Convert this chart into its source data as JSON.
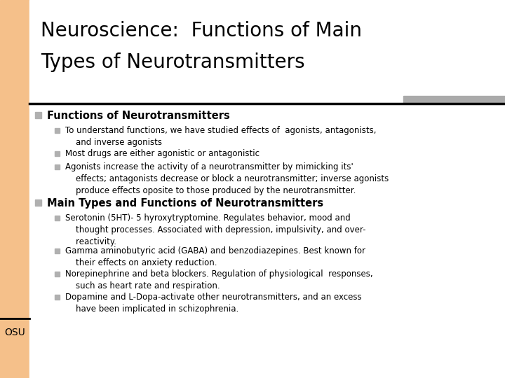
{
  "bg_color": "#ffffff",
  "left_bar_color": "#f5c08a",
  "title_line1": "Neuroscience:  Functions of Main",
  "title_line2": "Types of Neurotransmitters",
  "title_fontsize": 20,
  "title_color": "#000000",
  "separator_line_color": "#000000",
  "gray_bar_color": "#aaaaaa",
  "osu_text": "OSU",
  "section1_header": "Functions of Neurotransmitters",
  "section2_header": "Main Types and Functions of Neurotransmitters",
  "bullet_color": "#b0b0b0",
  "section1_bullets": [
    "To understand functions, we have studied effects of  agonists, antagonists,\n    and inverse agonists",
    "Most drugs are either agonistic or antagonistic",
    "Agonists increase the activity of a neurotransmitter by mimicking its'\n    effects; antagonists decrease or block a neurotransmitter; inverse agonists\n    produce effects oposite to those produced by the neurotransmitter."
  ],
  "section2_bullets": [
    "Serotonin (5HT)- 5 hyroxytryptomine. Regulates behavior, mood and\n    thought processes. Associated with depression, impulsivity, and over-\n    reactivity.",
    "Gamma aminobutyric acid (GABA) and benzodiazepines. Best known for\n    their effects on anxiety reduction.",
    "Norepinephrine and beta blockers. Regulation of physiological  responses,\n    such as heart rate and respiration.",
    "Dopamine and L-Dopa-activate other neurotransmitters, and an excess\n    have been implicated in schizophrenia."
  ],
  "body_fontsize": 8.5,
  "header_fontsize": 10.5,
  "title_font": "DejaVu Sans",
  "body_font": "DejaVu Sans"
}
